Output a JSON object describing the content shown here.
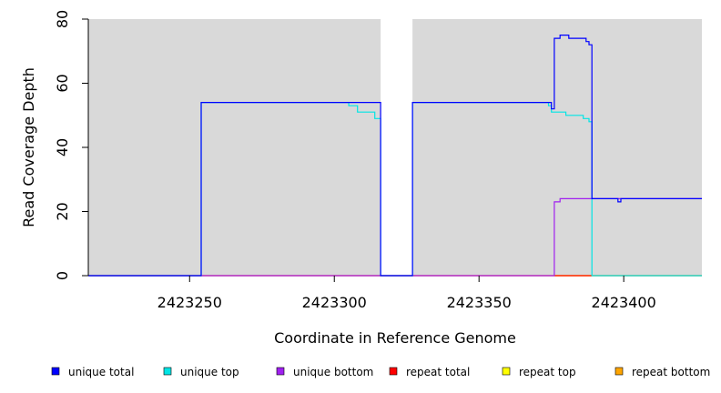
{
  "chart_data": {
    "type": "line",
    "title": "",
    "xlabel": "Coordinate in Reference Genome",
    "ylabel": "Read Coverage Depth",
    "xlim": [
      2423215,
      2423427
    ],
    "ylim": [
      0,
      80
    ],
    "x_ticks": [
      2423250,
      2423300,
      2423350,
      2423400
    ],
    "y_ticks": [
      0,
      20,
      40,
      60,
      80
    ],
    "grid": false,
    "background": "#d9d9d9",
    "uncovered_region": {
      "x": [
        2423316,
        2423327
      ],
      "color": "#ffffff"
    },
    "legend_position": "bottom",
    "series": [
      {
        "name": "unique total",
        "color": "#0000ff",
        "x": [
          2423215,
          2423254,
          2423254,
          2423316,
          2423316,
          2423327,
          2423327,
          2423375,
          2423375,
          2423376,
          2423376,
          2423378,
          2423378,
          2423381,
          2423381,
          2423387,
          2423387,
          2423388,
          2423388,
          2423389,
          2423389,
          2423398,
          2423398,
          2423399,
          2423399,
          2423427
        ],
        "y": [
          0,
          0,
          54,
          54,
          0,
          0,
          54,
          54,
          52,
          52,
          74,
          74,
          75,
          75,
          74,
          74,
          73,
          73,
          72,
          72,
          24,
          24,
          23,
          23,
          24,
          24
        ]
      },
      {
        "name": "unique top",
        "color": "#00e5e5",
        "x": [
          2423215,
          2423254,
          2423254,
          2423305,
          2423305,
          2423308,
          2423308,
          2423314,
          2423314,
          2423316,
          2423316,
          2423327,
          2423327,
          2423374,
          2423374,
          2423375,
          2423375,
          2423376,
          2423376,
          2423377,
          2423377,
          2423380,
          2423380,
          2423386,
          2423386,
          2423388,
          2423388,
          2423389,
          2423389,
          2423427
        ],
        "y": [
          0,
          0,
          54,
          54,
          53,
          53,
          51,
          51,
          49,
          49,
          0,
          0,
          54,
          54,
          53,
          53,
          51,
          51,
          51,
          51,
          51,
          51,
          50,
          50,
          49,
          49,
          48,
          48,
          0,
          0
        ]
      },
      {
        "name": "unique bottom",
        "color": "#a020f0",
        "x": [
          2423215,
          2423376,
          2423376,
          2423378,
          2423378,
          2423427
        ],
        "y": [
          0,
          0,
          23,
          23,
          24,
          24
        ]
      },
      {
        "name": "repeat total",
        "color": "#ff0000",
        "x": [
          2423215,
          2423427
        ],
        "y": [
          0,
          0
        ]
      },
      {
        "name": "repeat top",
        "color": "#ffff00",
        "x": [
          2423215,
          2423427
        ],
        "y": [
          0,
          0
        ]
      },
      {
        "name": "repeat bottom",
        "color": "#ffa500",
        "x": [
          2423376,
          2423389
        ],
        "y": [
          0,
          0
        ]
      }
    ]
  }
}
